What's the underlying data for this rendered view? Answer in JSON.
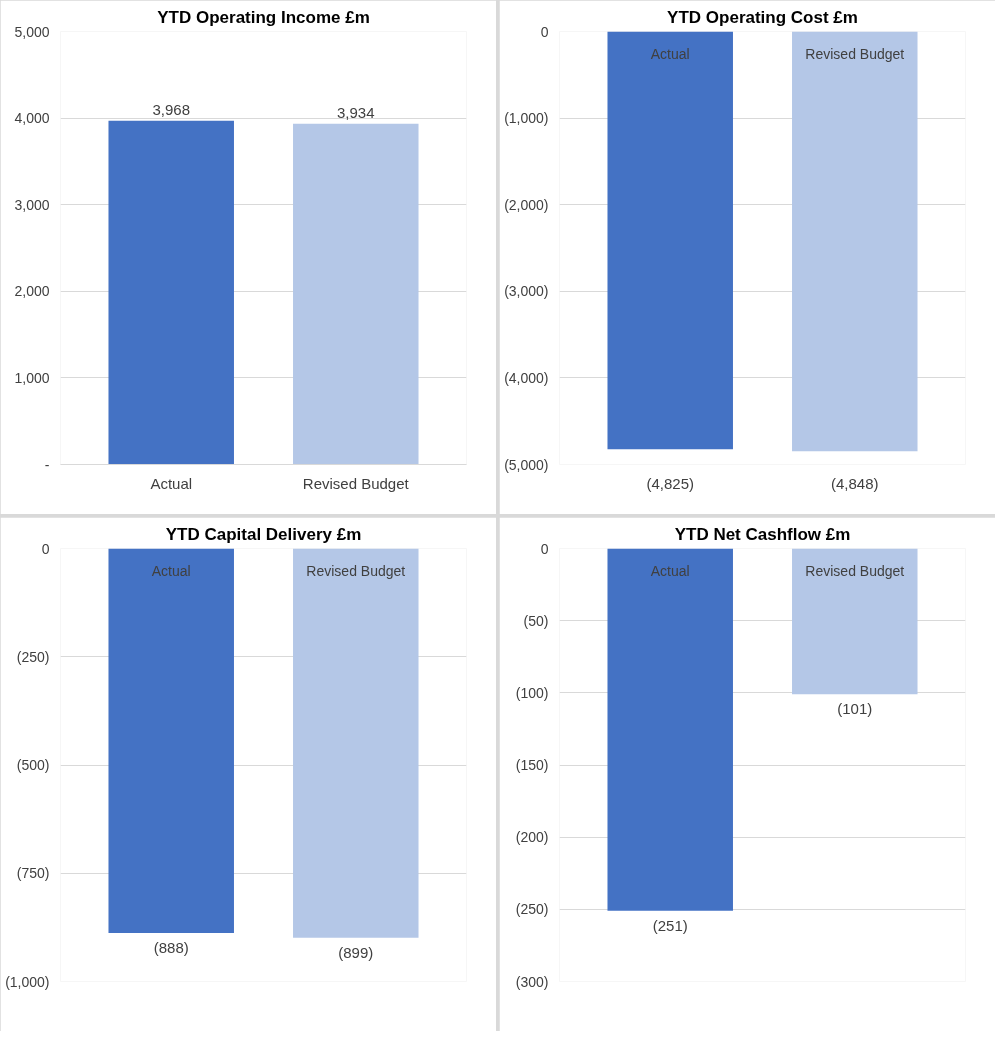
{
  "chart_data": [
    {
      "type": "bar",
      "title": "YTD Operating Income £m",
      "categories": [
        "Actual",
        "Revised Budget"
      ],
      "values": [
        3968,
        3934
      ],
      "colors": [
        "#4472c4",
        "#b4c7e7"
      ],
      "value_labels": [
        "3,968",
        "3,934"
      ],
      "ylim": [
        0,
        5000
      ],
      "yticks": [
        {
          "value": 0,
          "label": "-"
        },
        {
          "value": 1000,
          "label": "1,000"
        },
        {
          "value": 2000,
          "label": "2,000"
        },
        {
          "value": 3000,
          "label": "3,000"
        },
        {
          "value": 4000,
          "label": "4,000"
        },
        {
          "value": 5000,
          "label": "5,000"
        }
      ],
      "grid": "y"
    },
    {
      "type": "bar",
      "title": "YTD Operating Cost £m",
      "categories": [
        "Actual",
        "Revised Budget"
      ],
      "values": [
        -4825,
        -4848
      ],
      "colors": [
        "#4472c4",
        "#b4c7e7"
      ],
      "value_labels": [
        "(4,825)",
        "(4,848)"
      ],
      "ylim": [
        -5000,
        0
      ],
      "yticks": [
        {
          "value": -5000,
          "label": "(5,000)"
        },
        {
          "value": -4000,
          "label": "(4,000)"
        },
        {
          "value": -3000,
          "label": "(3,000)"
        },
        {
          "value": -2000,
          "label": "(2,000)"
        },
        {
          "value": -1000,
          "label": "(1,000)"
        },
        0
      ],
      "grid": "y"
    },
    {
      "type": "bar",
      "title": "YTD Capital Delivery £m",
      "categories": [
        "Actual",
        "Revised Budget"
      ],
      "values": [
        -888,
        -899
      ],
      "colors": [
        "#4472c4",
        "#b4c7e7"
      ],
      "value_labels": [
        "(888)",
        "(899)"
      ],
      "ylim": [
        -1000,
        0
      ],
      "yticks": [
        {
          "value": -1000,
          "label": "(1,000)"
        },
        {
          "value": -750,
          "label": "(750)"
        },
        {
          "value": -500,
          "label": "(500)"
        },
        {
          "value": -250,
          "label": "(250)"
        },
        0
      ],
      "grid": "y"
    },
    {
      "type": "bar",
      "title": "YTD Net Cashflow £m",
      "categories": [
        "Actual",
        "Revised Budget"
      ],
      "values": [
        -251,
        -101
      ],
      "colors": [
        "#4472c4",
        "#b4c7e7"
      ],
      "value_labels": [
        "(251)",
        "(101)"
      ],
      "ylim": [
        -300,
        0
      ],
      "yticks": [
        {
          "value": -300,
          "label": "(300)"
        },
        {
          "value": -250,
          "label": "(250)"
        },
        {
          "value": -200,
          "label": "(200)"
        },
        {
          "value": -150,
          "label": "(150)"
        },
        {
          "value": -100,
          "label": "(100)"
        },
        {
          "value": -50,
          "label": "(50)"
        },
        0
      ],
      "grid": "y"
    }
  ]
}
